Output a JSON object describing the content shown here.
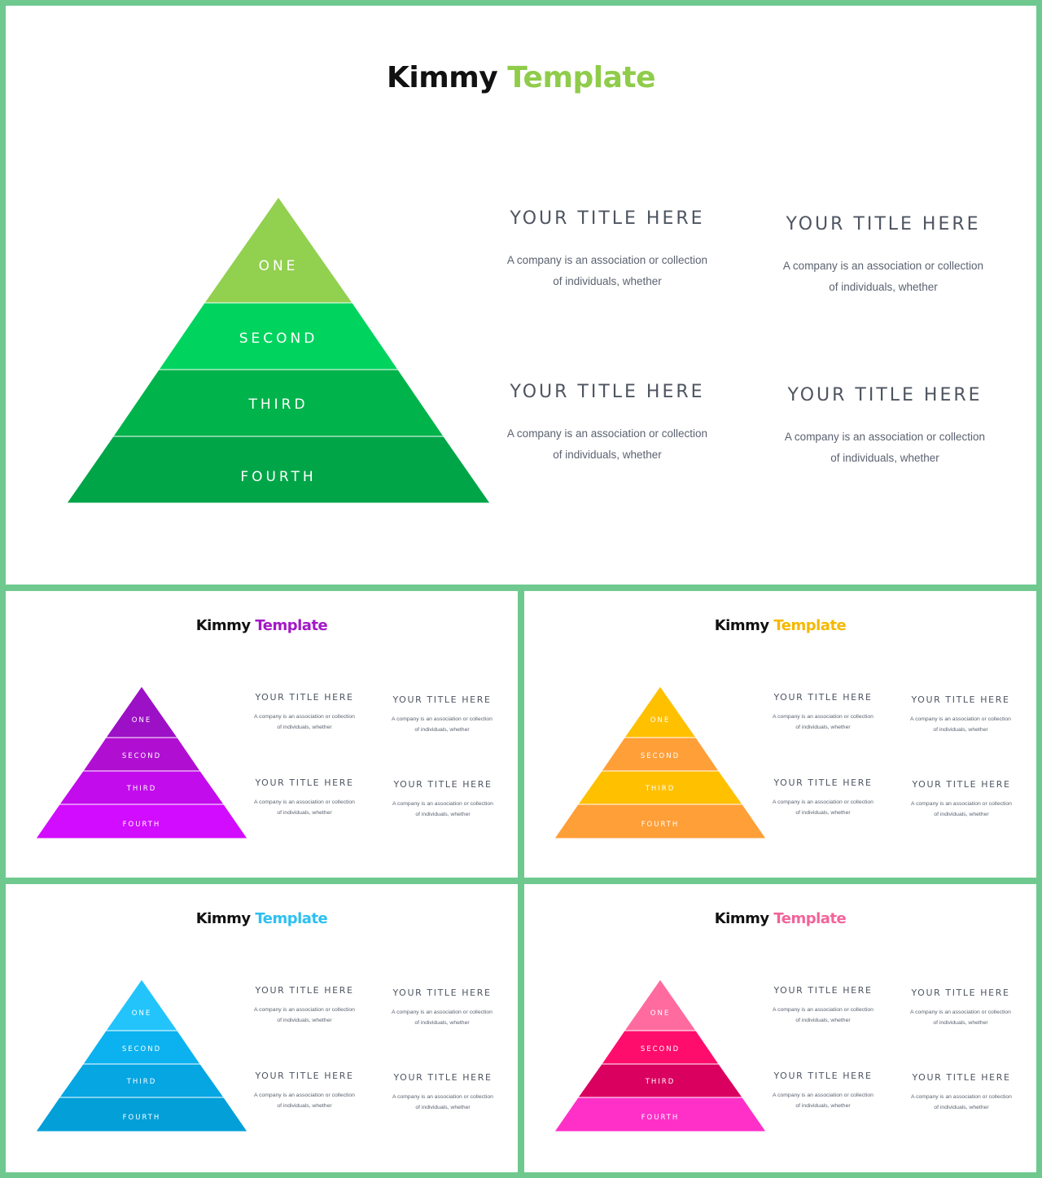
{
  "slides": [
    {
      "heading": {
        "first": "Kimmy",
        "second": "Template"
      },
      "accent": "#8fcc4a",
      "layer_colors": [
        "#92d050",
        "#00d45e",
        "#00b34b",
        "#00a548"
      ],
      "layers": [
        "ONE",
        "SECOND",
        "THIRD",
        "FOURTH"
      ],
      "tiles": [
        {
          "title": "YOUR TITLE HERE",
          "desc": "A company is an association or collection of individuals, whether"
        },
        {
          "title": "YOUR TITLE HERE",
          "desc": "A company is an association or collection of individuals, whether"
        },
        {
          "title": "YOUR TITLE HERE",
          "desc": "A company is an association or collection of individuals, whether"
        },
        {
          "title": "YOUR TITLE HERE",
          "desc": "A company is an association or collection of individuals, whether"
        }
      ]
    },
    {
      "heading": {
        "first": "Kimmy",
        "second": "Template"
      },
      "accent": "#a318c7",
      "layer_colors": [
        "#9c10c6",
        "#b00fd2",
        "#c20cec",
        "#d10cff"
      ],
      "layers": [
        "ONE",
        "SECOND",
        "THIRD",
        "FOURTH"
      ],
      "tiles": [
        {
          "title": "YOUR TITLE HERE",
          "desc": "A company is an association or collection of individuals, whether"
        },
        {
          "title": "YOUR TITLE HERE",
          "desc": "A company is an association or collection of individuals, whether"
        },
        {
          "title": "YOUR TITLE HERE",
          "desc": "A company is an association or collection of individuals, whether"
        },
        {
          "title": "YOUR TITLE HERE",
          "desc": "A company is an association or collection of individuals, whether"
        }
      ]
    },
    {
      "heading": {
        "first": "Kimmy",
        "second": "Template"
      },
      "accent": "#f5b800",
      "layer_colors": [
        "#ffc000",
        "#ff9f38",
        "#ffc000",
        "#ff9f38"
      ],
      "layers": [
        "ONE",
        "SECOND",
        "THIRD",
        "FOURTH"
      ],
      "tiles": [
        {
          "title": "YOUR TITLE HERE",
          "desc": "A company is an association or collection of individuals, whether"
        },
        {
          "title": "YOUR TITLE HERE",
          "desc": "A company is an association or collection of individuals, whether"
        },
        {
          "title": "YOUR TITLE HERE",
          "desc": "A company is an association or collection of individuals, whether"
        },
        {
          "title": "YOUR TITLE HERE",
          "desc": "A company is an association or collection of individuals, whether"
        }
      ]
    },
    {
      "heading": {
        "first": "Kimmy",
        "second": "Template"
      },
      "accent": "#2ec0f0",
      "layer_colors": [
        "#22c4fb",
        "#0cb2ef",
        "#06a6e3",
        "#029fd8"
      ],
      "layers": [
        "ONE",
        "SECOND",
        "THIRD",
        "FOURTH"
      ],
      "tiles": [
        {
          "title": "YOUR TITLE HERE",
          "desc": "A company is an association or collection of individuals, whether"
        },
        {
          "title": "YOUR TITLE HERE",
          "desc": "A company is an association or collection of individuals, whether"
        },
        {
          "title": "YOUR TITLE HERE",
          "desc": "A company is an association or collection of individuals, whether"
        },
        {
          "title": "YOUR TITLE HERE",
          "desc": "A company is an association or collection of individuals, whether"
        }
      ]
    },
    {
      "heading": {
        "first": "Kimmy",
        "second": "Template"
      },
      "accent": "#f2649a",
      "layer_colors": [
        "#ff6b9f",
        "#ff0d6c",
        "#d9005f",
        "#ff30c8"
      ],
      "layers": [
        "ONE",
        "SECOND",
        "THIRD",
        "FOURTH"
      ],
      "tiles": [
        {
          "title": "YOUR TITLE HERE",
          "desc": "A company is an association or collection of individuals, whether"
        },
        {
          "title": "YOUR TITLE HERE",
          "desc": "A company is an association or collection of individuals, whether"
        },
        {
          "title": "YOUR TITLE HERE",
          "desc": "A company is an association or collection of individuals, whether"
        },
        {
          "title": "YOUR TITLE HERE",
          "desc": "A company is an association or collection of individuals, whether"
        }
      ]
    }
  ]
}
